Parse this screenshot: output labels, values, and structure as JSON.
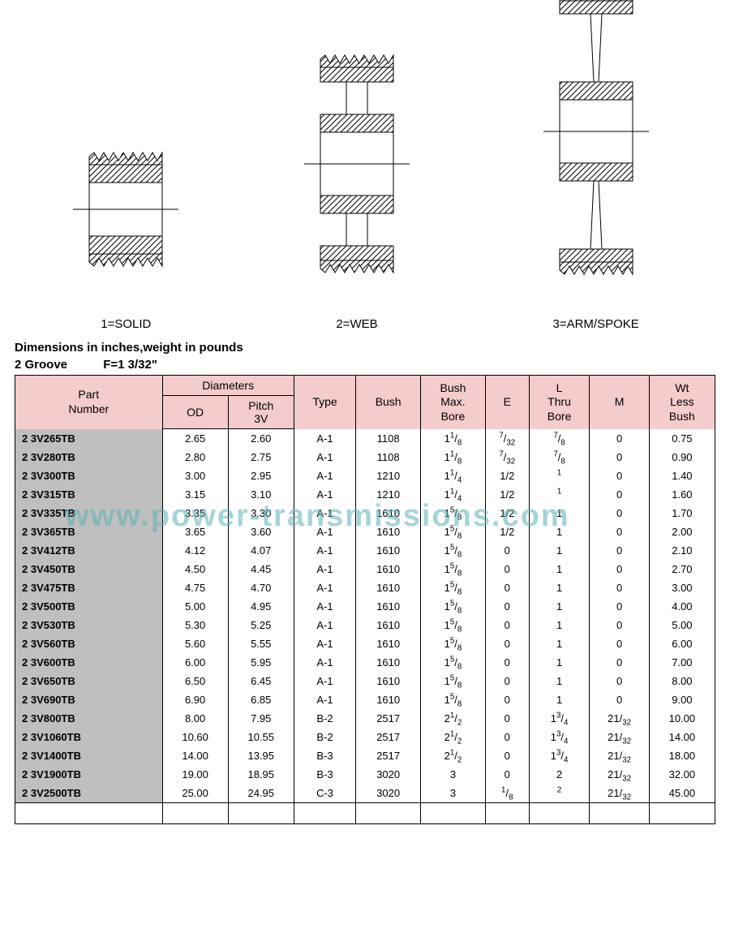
{
  "diagram_labels": {
    "d1": "1=SOLID",
    "d2": "2=WEB",
    "d3": "3=ARM/SPOKE"
  },
  "meta": {
    "units": "Dimensions in inches,weight in pounds",
    "groove": "2 Groove",
    "f": "F=1 3/32\""
  },
  "watermark": "www.power-transmissions.com",
  "table": {
    "header_colors": {
      "head_bg": "#f4cccc",
      "part_bg": "#bfbfbf",
      "border": "#000000"
    },
    "headers": {
      "part_number": "Part<br>Number",
      "diameters": "Diameters",
      "od": "OD",
      "pitch": "Pitch<br>3V",
      "type": "Type",
      "bush": "Bush",
      "bush_max_bore": "Bush<br>Max.<br>Bore",
      "e": "E",
      "l_thru_bore": "L<br>Thru<br>Bore",
      "m": "M",
      "wt_less_bush": "Wt<br>Less<br>Bush"
    },
    "rows": [
      {
        "pn": "2 3V265TB",
        "od": "2.65",
        "pitch": "2.60",
        "type": "A-1",
        "bush": "1108",
        "bmb": "1<sup>1</sup>/<sub>8</sub>",
        "e": "<sup>7</sup>/<sub>32</sub>",
        "l": "<sup>7</sup>/<sub>8</sub>",
        "m": "0",
        "wt": "0.75"
      },
      {
        "pn": "2 3V280TB",
        "od": "2.80",
        "pitch": "2.75",
        "type": "A-1",
        "bush": "1108",
        "bmb": "1<sup>1</sup>/<sub>8</sub>",
        "e": "<sup>7</sup>/<sub>32</sub>",
        "l": "<sup>7</sup>/<sub>8</sub>",
        "m": "0",
        "wt": "0.90"
      },
      {
        "pn": "2 3V300TB",
        "od": "3.00",
        "pitch": "2.95",
        "type": "A-1",
        "bush": "1210",
        "bmb": "1<sup>1</sup>/<sub>4</sub>",
        "e": "1/2",
        "l": "<sup>1</sup>",
        "m": "0",
        "wt": "1.40"
      },
      {
        "pn": "2 3V315TB",
        "od": "3.15",
        "pitch": "3.10",
        "type": "A-1",
        "bush": "1210",
        "bmb": "1<sup>1</sup>/<sub>4</sub>",
        "e": "1/2",
        "l": "<sup>1</sup>",
        "m": "0",
        "wt": "1.60"
      },
      {
        "pn": "2 3V335TB",
        "od": "3.35",
        "pitch": "3.30",
        "type": "A-1",
        "bush": "1610",
        "bmb": "1<sup>5</sup>/<sub>8</sub>",
        "e": "1/2",
        "l": "1",
        "m": "0",
        "wt": "1.70"
      },
      {
        "pn": "2 3V365TB",
        "od": "3.65",
        "pitch": "3.60",
        "type": "A-1",
        "bush": "1610",
        "bmb": "1<sup>5</sup>/<sub>8</sub>",
        "e": "1/2",
        "l": "1",
        "m": "0",
        "wt": "2.00"
      },
      {
        "pn": "2 3V412TB",
        "od": "4.12",
        "pitch": "4.07",
        "type": "A-1",
        "bush": "1610",
        "bmb": "1<sup>5</sup>/<sub>8</sub>",
        "e": "0",
        "l": "1",
        "m": "0",
        "wt": "2.10"
      },
      {
        "pn": "2 3V450TB",
        "od": "4.50",
        "pitch": "4.45",
        "type": "A-1",
        "bush": "1610",
        "bmb": "1<sup>5</sup>/<sub>8</sub>",
        "e": "0",
        "l": "1",
        "m": "0",
        "wt": "2.70"
      },
      {
        "pn": "2 3V475TB",
        "od": "4.75",
        "pitch": "4.70",
        "type": "A-1",
        "bush": "1610",
        "bmb": "1<sup>5</sup>/<sub>8</sub>",
        "e": "0",
        "l": "1",
        "m": "0",
        "wt": "3.00"
      },
      {
        "pn": "2 3V500TB",
        "od": "5.00",
        "pitch": "4.95",
        "type": "A-1",
        "bush": "1610",
        "bmb": "1<sup>5</sup>/<sub>8</sub>",
        "e": "0",
        "l": "1",
        "m": "0",
        "wt": "4.00"
      },
      {
        "pn": "2 3V530TB",
        "od": "5.30",
        "pitch": "5.25",
        "type": "A-1",
        "bush": "1610",
        "bmb": "1<sup>5</sup>/<sub>8</sub>",
        "e": "0",
        "l": "1",
        "m": "0",
        "wt": "5.00"
      },
      {
        "pn": "2 3V560TB",
        "od": "5.60",
        "pitch": "5.55",
        "type": "A-1",
        "bush": "1610",
        "bmb": "1<sup>5</sup>/<sub>8</sub>",
        "e": "0",
        "l": "1",
        "m": "0",
        "wt": "6.00"
      },
      {
        "pn": "2 3V600TB",
        "od": "6.00",
        "pitch": "5.95",
        "type": "A-1",
        "bush": "1610",
        "bmb": "1<sup>5</sup>/<sub>8</sub>",
        "e": "0",
        "l": "1",
        "m": "0",
        "wt": "7.00"
      },
      {
        "pn": "2 3V650TB",
        "od": "6.50",
        "pitch": "6.45",
        "type": "A-1",
        "bush": "1610",
        "bmb": "1<sup>5</sup>/<sub>8</sub>",
        "e": "0",
        "l": "1",
        "m": "0",
        "wt": "8.00"
      },
      {
        "pn": "2 3V690TB",
        "od": "6.90",
        "pitch": "6.85",
        "type": "A-1",
        "bush": "1610",
        "bmb": "1<sup>5</sup>/<sub>8</sub>",
        "e": "0",
        "l": "1",
        "m": "0",
        "wt": "9.00"
      },
      {
        "pn": "2 3V800TB",
        "od": "8.00",
        "pitch": "7.95",
        "type": "B-2",
        "bush": "2517",
        "bmb": "2<sup>1</sup>/<sub>2</sub>",
        "e": "0",
        "l": "1<sup>3</sup>/<sub>4</sub>",
        "m": "21/<sub>32</sub>",
        "wt": "10.00"
      },
      {
        "pn": "2 3V1060TB",
        "od": "10.60",
        "pitch": "10.55",
        "type": "B-2",
        "bush": "2517",
        "bmb": "2<sup>1</sup>/<sub>2</sub>",
        "e": "0",
        "l": "1<sup>3</sup>/<sub>4</sub>",
        "m": "21/<sub>32</sub>",
        "wt": "14.00"
      },
      {
        "pn": "2 3V1400TB",
        "od": "14.00",
        "pitch": "13.95",
        "type": "B-3",
        "bush": "2517",
        "bmb": "2<sup>1</sup>/<sub>2</sub>",
        "e": "0",
        "l": "1<sup>3</sup>/<sub>4</sub>",
        "m": "21/<sub>32</sub>",
        "wt": "18.00"
      },
      {
        "pn": "2 3V1900TB",
        "od": "19.00",
        "pitch": "18.95",
        "type": "B-3",
        "bush": "3020",
        "bmb": "3",
        "e": "0",
        "l": "2",
        "m": "21/<sub>32</sub>",
        "wt": "32.00"
      },
      {
        "pn": "2 3V2500TB",
        "od": "25.00",
        "pitch": "24.95",
        "type": "C-3",
        "bush": "3020",
        "bmb": "3",
        "e": "<sup>1</sup>/<sub>8</sub>",
        "l": "<sup>2</sup>",
        "m": "21/<sub>32</sub>",
        "wt": "45.00"
      }
    ]
  }
}
